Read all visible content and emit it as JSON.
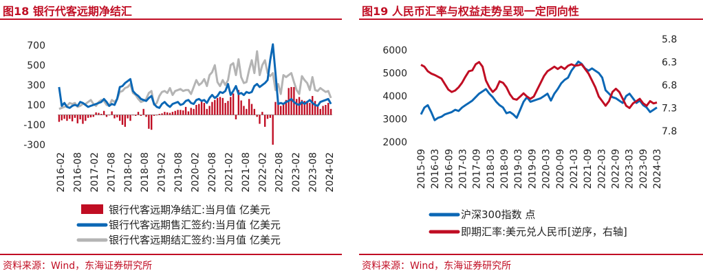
{
  "colors": {
    "accent": "#c00d23",
    "blue": "#0b67b5",
    "gray": "#b4b4b4",
    "red": "#c00d23"
  },
  "left": {
    "title": "图18 银行代客远期净结汇",
    "source": "资料来源：Wind，东海证券研究所"
  },
  "right": {
    "title": "图19 人民币汇率与权益走势呈现一定同向性",
    "source": "资料来源：Wind，东海证券研究所"
  },
  "chart_data": [
    {
      "type": "bar",
      "title": "图18 银行代客远期净结汇",
      "ylim": [
        -300,
        700
      ],
      "y_ticks": [
        "700",
        "500",
        "300",
        "100",
        "-100",
        "-300"
      ],
      "x_ticks": [
        "2016-02",
        "2016-08",
        "2017-02",
        "2017-08",
        "2018-02",
        "2018-08",
        "2019-02",
        "2019-08",
        "2020-02",
        "2020-08",
        "2021-02",
        "2021-08",
        "2022-02",
        "2022-08",
        "2023-02",
        "2023-08",
        "2024-02"
      ],
      "series": [
        {
          "name": "银行代客远期净结汇:当月值 亿美元",
          "type": "bar",
          "color": "#c00d23",
          "values": [
            -70,
            -55,
            -40,
            -60,
            -40,
            -65,
            -30,
            -85,
            -45,
            -90,
            -60,
            -30,
            -25,
            -20,
            25,
            20,
            10,
            40,
            -20,
            -5,
            35,
            -35,
            -25,
            -60,
            -100,
            -120,
            -35,
            -60,
            -5,
            -10,
            30,
            -10,
            60,
            -20,
            -140,
            -150,
            -10,
            -5,
            10,
            15,
            30,
            25,
            20,
            30,
            40,
            50,
            50,
            45,
            80,
            35,
            70,
            60,
            100,
            110,
            140,
            120,
            60,
            90,
            130,
            150,
            170,
            180,
            170,
            120,
            140,
            180,
            215,
            -45,
            250,
            145,
            90,
            60,
            160,
            110,
            60,
            -20,
            -90,
            30,
            -120,
            -40,
            -30,
            -300,
            130,
            110,
            90,
            120,
            150,
            270,
            280,
            280,
            160,
            180,
            150,
            140,
            140,
            120,
            190,
            140,
            100,
            60,
            90,
            100,
            120,
            60
          ]
        },
        {
          "name": "银行代客远期售汇签约:当月值 亿美元",
          "type": "line",
          "color": "#0b67b5",
          "values": [
            280,
            90,
            120,
            80,
            70,
            90,
            100,
            90,
            130,
            120,
            100,
            80,
            90,
            100,
            110,
            120,
            130,
            160,
            130,
            90,
            110,
            100,
            160,
            280,
            290,
            320,
            340,
            360,
            240,
            210,
            190,
            160,
            150,
            140,
            170,
            190,
            110,
            80,
            70,
            110,
            130,
            100,
            80,
            110,
            120,
            130,
            100,
            110,
            140,
            150,
            120,
            110,
            150,
            160,
            140,
            150,
            120,
            170,
            200,
            170,
            190,
            230,
            220,
            240,
            310,
            200,
            240,
            290,
            210,
            220,
            200,
            230,
            220,
            230,
            290,
            310,
            280,
            300,
            320,
            350,
            550,
            710,
            420,
            110,
            120,
            110,
            130,
            140,
            160,
            130,
            110,
            100,
            130,
            110,
            130,
            150,
            120,
            100,
            90,
            130,
            140,
            150,
            160,
            110
          ]
        },
        {
          "name": "银行代客远期结汇签约:当月值 亿美元",
          "type": "line",
          "color": "#b4b4b4",
          "values": [
            60,
            70,
            80,
            90,
            120,
            110,
            120,
            80,
            90,
            110,
            110,
            130,
            150,
            110,
            90,
            130,
            150,
            140,
            100,
            90,
            150,
            130,
            160,
            230,
            240,
            270,
            280,
            310,
            220,
            200,
            160,
            130,
            140,
            160,
            220,
            240,
            100,
            120,
            190,
            230,
            240,
            220,
            270,
            200,
            240,
            250,
            260,
            240,
            250,
            250,
            210,
            280,
            350,
            300,
            320,
            360,
            290,
            400,
            430,
            500,
            330,
            290,
            350,
            300,
            350,
            500,
            520,
            400,
            560,
            380,
            320,
            330,
            450,
            550,
            420,
            640,
            400,
            500,
            550,
            420,
            390,
            420,
            250,
            310,
            210,
            400,
            380,
            400,
            420,
            330,
            250,
            210,
            390,
            350,
            320,
            250,
            380,
            250,
            240,
            270,
            250,
            230,
            240,
            170
          ]
        }
      ]
    },
    {
      "type": "line",
      "title": "图19 人民币汇率与权益走势呈现一定同向性",
      "ylim": [
        2000,
        6000
      ],
      "y2lim": [
        7.8,
        5.8
      ],
      "y_ticks": [
        "6000",
        "5000",
        "4000",
        "3000",
        "2000"
      ],
      "y2_ticks": [
        "5.8",
        "6.3",
        "6.8",
        "7.3",
        "7.8"
      ],
      "x_ticks": [
        "2015-09",
        "2016-03",
        "2016-09",
        "2017-03",
        "2017-09",
        "2018-03",
        "2018-09",
        "2019-03",
        "2019-09",
        "2020-03",
        "2020-09",
        "2021-03",
        "2021-09",
        "2022-03",
        "2022-09",
        "2023-03",
        "2023-09",
        "2024-03"
      ],
      "series": [
        {
          "name": "沪深300指数 点",
          "axis": "left",
          "color": "#0b67b5",
          "values": [
            3200,
            3500,
            3600,
            3300,
            2950,
            3050,
            3100,
            3200,
            3250,
            3300,
            3400,
            3350,
            3500,
            3600,
            3700,
            3800,
            3950,
            4100,
            4200,
            4300,
            4100,
            3950,
            3750,
            3600,
            3500,
            3250,
            3300,
            3200,
            3050,
            3400,
            3750,
            3950,
            3750,
            3800,
            3850,
            3900,
            4000,
            4100,
            3800,
            4100,
            4300,
            4550,
            4700,
            4800,
            5100,
            5300,
            5500,
            5400,
            5200,
            5100,
            5200,
            5100,
            5000,
            4800,
            4250,
            4100,
            3950,
            3900,
            3800,
            3700,
            4000,
            4100,
            3900,
            3700,
            3800,
            3600,
            3500,
            3300,
            3400,
            3500
          ]
        },
        {
          "name": "即期汇率:美元兑人民币[逆序，右轴]",
          "axis": "right",
          "color": "#c00d23",
          "values": [
            6.36,
            6.4,
            6.5,
            6.55,
            6.58,
            6.62,
            6.66,
            6.78,
            6.9,
            6.95,
            6.92,
            6.85,
            6.75,
            6.62,
            6.5,
            6.48,
            6.35,
            6.3,
            6.4,
            6.7,
            6.85,
            6.95,
            6.88,
            6.72,
            6.75,
            6.85,
            7.0,
            7.1,
            7.12,
            7.05,
            6.98,
            7.05,
            7.1,
            7.05,
            6.9,
            6.75,
            6.6,
            6.5,
            6.45,
            6.4,
            6.45,
            6.4,
            6.45,
            6.38,
            6.35,
            6.38,
            6.37,
            6.35,
            6.45,
            6.55,
            6.7,
            6.85,
            7.05,
            7.15,
            7.25,
            7.15,
            6.95,
            6.88,
            6.95,
            7.1,
            7.25,
            7.3,
            7.2,
            7.15,
            7.1,
            7.2,
            7.25,
            7.15,
            7.2,
            7.18
          ]
        }
      ]
    }
  ]
}
